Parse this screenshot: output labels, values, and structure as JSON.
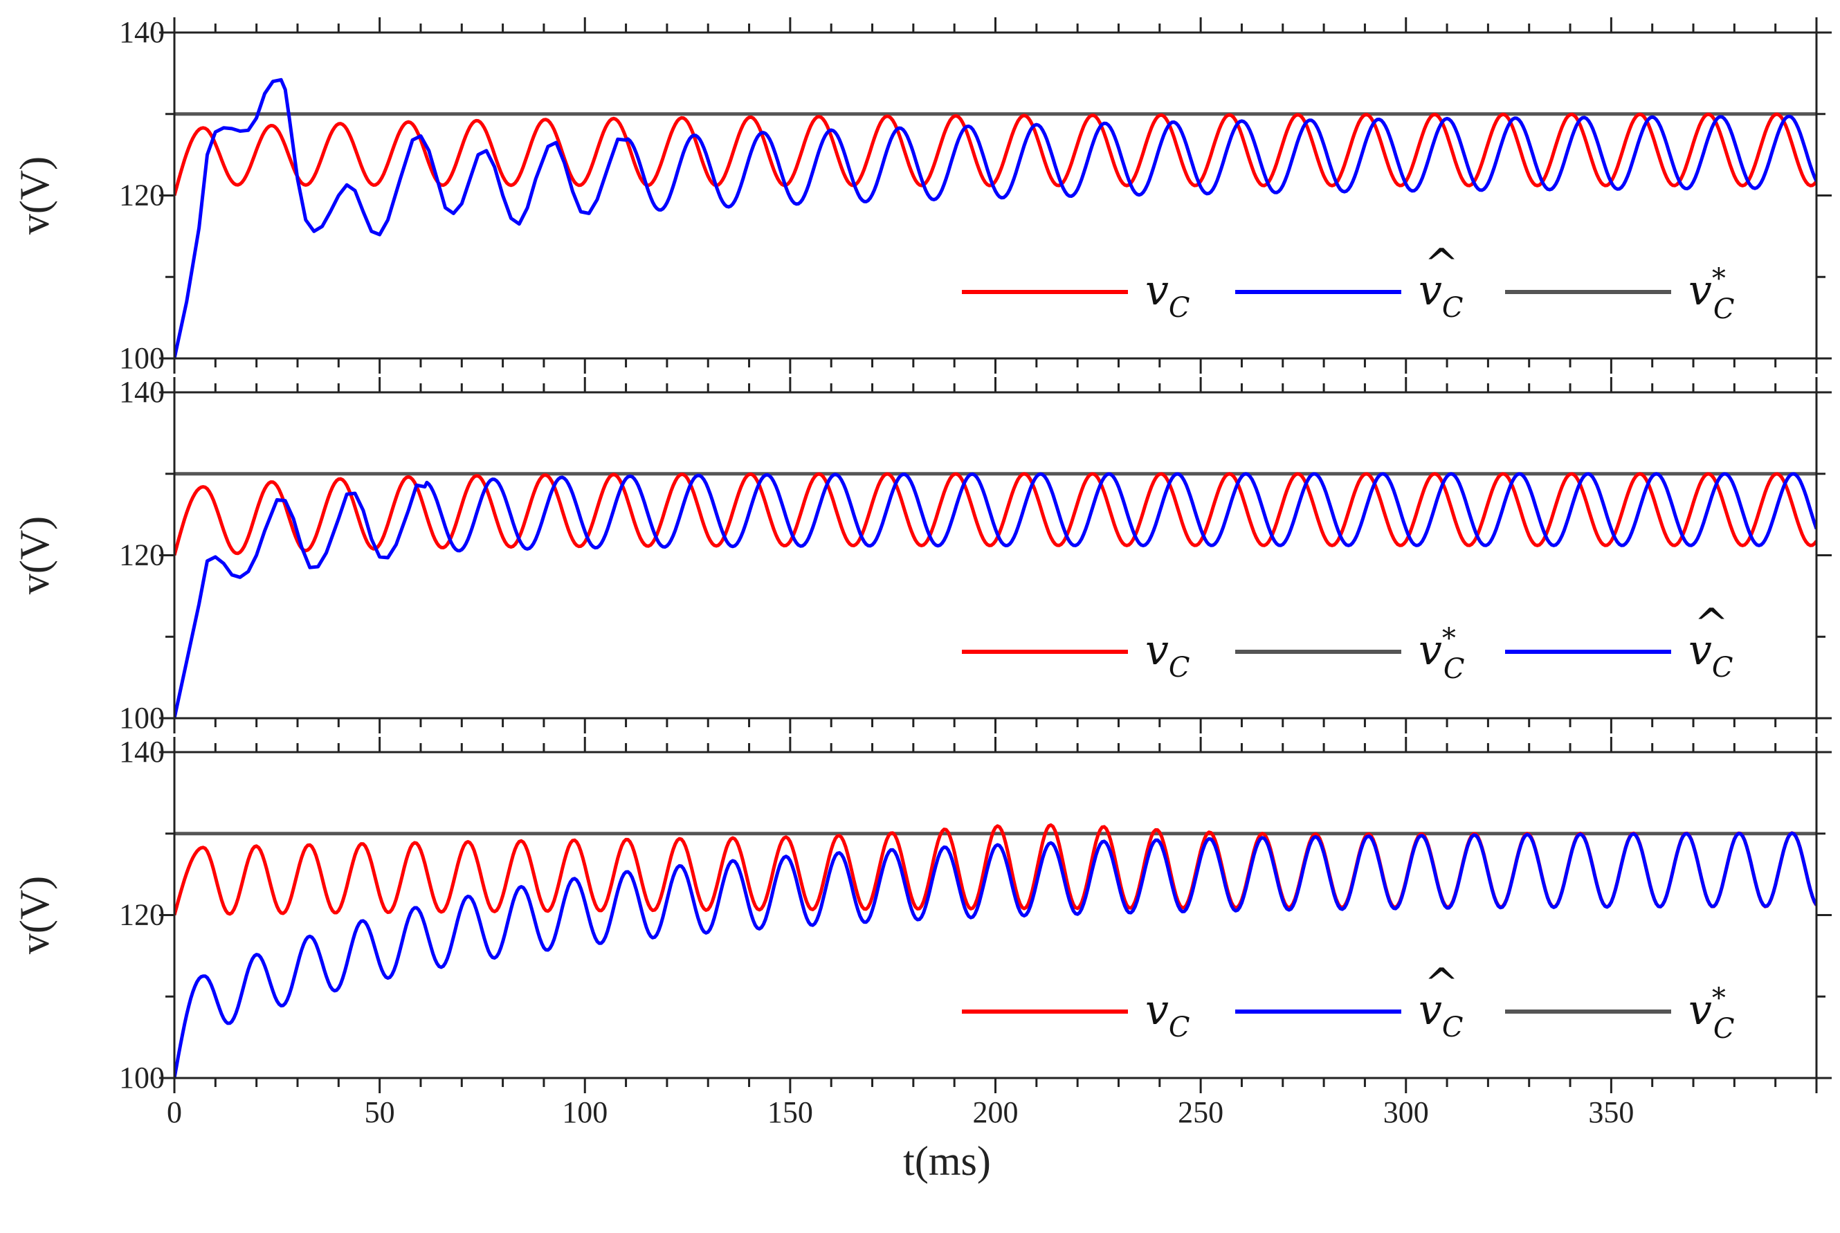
{
  "chart_data": [
    {
      "type": "line",
      "panel": "top",
      "ylabel": "v(V)",
      "xlabel": "",
      "xlim": [
        0,
        400
      ],
      "ylim": [
        100,
        140
      ],
      "yticks": [
        "100",
        "120",
        "140"
      ],
      "legend": [
        {
          "label": "v",
          "sub": "C",
          "sup": "",
          "hat": false,
          "color": "#ff0000"
        },
        {
          "label": "v",
          "sub": "C",
          "sup": "",
          "hat": true,
          "color": "#0000ff"
        },
        {
          "label": "v",
          "sub": "C",
          "sup": "*",
          "hat": false,
          "color": "#555555"
        }
      ],
      "series": [
        {
          "name": "v_C",
          "color": "#ff0000",
          "model": {
            "y0": 120,
            "start": 7,
            "delay": 2,
            "env_start": 3.5,
            "env_tau": 35,
            "low_end": 121.2,
            "low_tau": 110,
            "freq": 0.06,
            "peak_end": 130,
            "peak_start": 128.3,
            "peak_tau": 90
          }
        },
        {
          "name": "v̂_C",
          "color": "#0000ff",
          "points": [
            [
              0,
              100
            ],
            [
              3,
              107
            ],
            [
              6,
              116
            ],
            [
              8,
              125
            ],
            [
              10,
              127.8
            ],
            [
              12,
              128.3
            ],
            [
              14,
              128.2
            ],
            [
              16,
              127.9
            ],
            [
              18,
              128
            ],
            [
              20,
              129.5
            ],
            [
              22,
              132.5
            ],
            [
              24,
              134
            ],
            [
              26,
              134.2
            ],
            [
              27,
              133
            ],
            [
              28,
              129.5
            ],
            [
              30,
              122
            ],
            [
              32,
              117
            ],
            [
              34,
              115.6
            ],
            [
              36,
              116.2
            ],
            [
              38,
              118
            ],
            [
              40,
              120
            ],
            [
              42,
              121.3
            ],
            [
              44,
              120.6
            ],
            [
              46,
              118
            ],
            [
              48,
              115.6
            ],
            [
              50,
              115.2
            ],
            [
              52,
              117
            ],
            [
              55,
              122
            ],
            [
              58,
              126.8
            ],
            [
              60,
              127.3
            ],
            [
              62,
              125.5
            ],
            [
              64,
              122
            ],
            [
              66,
              118.5
            ],
            [
              68,
              117.8
            ],
            [
              70,
              119
            ],
            [
              72,
              122
            ],
            [
              74,
              125
            ],
            [
              76,
              125.5
            ],
            [
              78,
              123.5
            ],
            [
              80,
              120
            ],
            [
              82,
              117.2
            ],
            [
              84,
              116.5
            ],
            [
              86,
              118.5
            ],
            [
              88,
              122
            ],
            [
              91,
              126
            ],
            [
              93,
              126.5
            ],
            [
              95,
              124
            ],
            [
              97,
              120.5
            ],
            [
              99,
              118
            ],
            [
              101,
              117.8
            ],
            [
              103,
              119.5
            ],
            [
              106,
              124
            ],
            [
              108,
              126.9
            ],
            [
              110,
              126.8
            ]
          ],
          "model": {
            "y0": 122.5,
            "start": 110,
            "delay": 0,
            "env_start": 4.5,
            "env_tau": 60,
            "low_end": 121.2,
            "low_tau": 120,
            "freq": 0.06,
            "peak_end": 130,
            "peak_start": 127,
            "peak_tau": 120
          }
        },
        {
          "name": "v*_C",
          "color": "#555555",
          "constant": 130
        }
      ]
    },
    {
      "type": "line",
      "panel": "middle",
      "ylabel": "v(V)",
      "xlabel": "",
      "xlim": [
        0,
        400
      ],
      "ylim": [
        100,
        140
      ],
      "yticks": [
        "100",
        "120",
        "140"
      ],
      "legend": [
        {
          "label": "v",
          "sub": "C",
          "sup": "",
          "hat": false,
          "color": "#ff0000"
        },
        {
          "label": "v",
          "sub": "C",
          "sup": "*",
          "hat": false,
          "color": "#555555"
        },
        {
          "label": "v",
          "sub": "C",
          "sup": "",
          "hat": true,
          "color": "#0000ff"
        }
      ],
      "series": [
        {
          "name": "v_C",
          "color": "#ff0000",
          "model": {
            "y0": 120,
            "start": 7,
            "delay": 2,
            "env_start": 4.2,
            "env_tau": 40,
            "low_end": 121.2,
            "low_tau": 40,
            "freq": 0.06,
            "peak_end": 130,
            "peak_start": 128.4,
            "peak_tau": 35
          }
        },
        {
          "name": "v̂_C",
          "color": "#0000ff",
          "points": [
            [
              0,
              100
            ],
            [
              3,
              107
            ],
            [
              6,
              114
            ],
            [
              8,
              119.3
            ],
            [
              10,
              119.8
            ],
            [
              12,
              119
            ],
            [
              14,
              117.6
            ],
            [
              16,
              117.3
            ],
            [
              18,
              118
            ],
            [
              20,
              120
            ],
            [
              22,
              123
            ],
            [
              25,
              126.8
            ],
            [
              27,
              126.7
            ],
            [
              29,
              124.5
            ],
            [
              31,
              121
            ],
            [
              33,
              118.5
            ],
            [
              35,
              118.6
            ],
            [
              37,
              120.3
            ],
            [
              40,
              124.5
            ],
            [
              42,
              127.5
            ],
            [
              44,
              127.6
            ],
            [
              46,
              125.5
            ],
            [
              48,
              122
            ],
            [
              50,
              119.8
            ],
            [
              52,
              119.7
            ],
            [
              54,
              121.3
            ],
            [
              57,
              125.5
            ],
            [
              59,
              128.6
            ],
            [
              61,
              128.4
            ]
          ],
          "model": {
            "y0": 126.6,
            "start": 61,
            "delay": 0,
            "env_start": 4.3,
            "env_tau": 40,
            "low_end": 121.2,
            "low_tau": 40,
            "freq": 0.06,
            "peak_end": 130,
            "peak_start": 129,
            "peak_tau": 40
          }
        },
        {
          "name": "v*_C",
          "color": "#555555",
          "constant": 130
        }
      ]
    },
    {
      "type": "line",
      "panel": "bottom",
      "ylabel": "v(V)",
      "xlabel": "t(ms)",
      "xlim": [
        0,
        400
      ],
      "ylim": [
        100,
        140
      ],
      "yticks": [
        "100",
        "120",
        "140"
      ],
      "xticks": [
        "0",
        "50",
        "100",
        "150",
        "200",
        "250",
        "300",
        "350"
      ],
      "legend": [
        {
          "label": "v",
          "sub": "C",
          "sup": "",
          "hat": false,
          "color": "#ff0000"
        },
        {
          "label": "v",
          "sub": "C",
          "sup": "",
          "hat": true,
          "color": "#0000ff"
        },
        {
          "label": "v",
          "sub": "C",
          "sup": "*",
          "hat": false,
          "color": "#555555"
        }
      ],
      "series": [
        {
          "name": "v_C",
          "color": "#ff0000",
          "model": {
            "y0": 120,
            "start": 7,
            "delay": 2,
            "env_start": 4.1,
            "env_tau": 300,
            "low_end": 121.2,
            "low_tau": 200,
            "freq": 0.0775,
            "peak_end": 130.2,
            "peak_start": 128.3,
            "peak_tau": 140,
            "bump": 1.3,
            "bump_center": 210,
            "bump_width": 35
          }
        },
        {
          "name": "v̂_C",
          "color": "#0000ff",
          "model": {
            "y0": 100,
            "start": 7,
            "delay": 2,
            "ramp_from": 109,
            "ramp_to": 125.7,
            "ramp_tau": 80,
            "env_start": 3.5,
            "env_end": 4.5,
            "env_tau": 80,
            "freq": 0.0775
          }
        },
        {
          "name": "v*_C",
          "color": "#555555",
          "constant": 130
        }
      ]
    }
  ]
}
